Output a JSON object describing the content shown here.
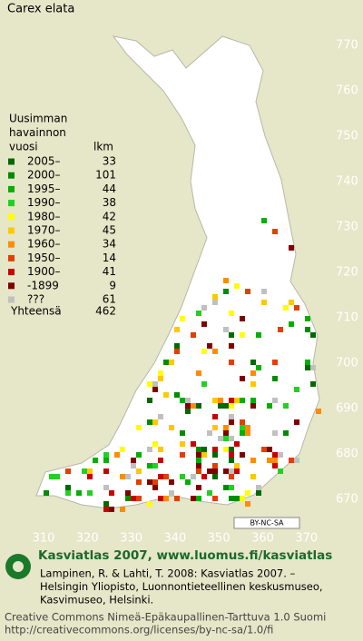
{
  "title": "Carex elata",
  "legend": {
    "heading": [
      "Uusimman",
      "havainnon",
      "vuosi"
    ],
    "count_heading": "lkm",
    "items": [
      {
        "label": "2005–",
        "count": 33,
        "color": "#006a00"
      },
      {
        "label": "2000–",
        "count": 101,
        "color": "#008c00"
      },
      {
        "label": "1995–",
        "count": 44,
        "color": "#00b000"
      },
      {
        "label": "1990–",
        "count": 38,
        "color": "#22d022"
      },
      {
        "label": "1980–",
        "count": 42,
        "color": "#ffff00"
      },
      {
        "label": "1970–",
        "count": 45,
        "color": "#ffc800"
      },
      {
        "label": "1960–",
        "count": 34,
        "color": "#ff8c00"
      },
      {
        "label": "1950–",
        "count": 14,
        "color": "#e04000"
      },
      {
        "label": "1900–",
        "count": 41,
        "color": "#c80000"
      },
      {
        "label": "-1899",
        "count": 9,
        "color": "#800000"
      },
      {
        "label": "???",
        "count": 61,
        "color": "#c0c0c0"
      }
    ],
    "total_label": "Yhteensä",
    "total": 462
  },
  "grid": {
    "y_labels": [
      "770",
      "760",
      "750",
      "740",
      "730",
      "720",
      "710",
      "700",
      "690",
      "680",
      "670"
    ],
    "x_labels": [
      "310",
      "320",
      "330",
      "340",
      "350",
      "360",
      "370"
    ]
  },
  "license_badge": "BY-NC-SA",
  "footer": {
    "site": "Kasviatlas 2007, www.luomus.fi/kasviatlas",
    "citation": [
      "Lampinen, R. & Lahti, T. 2008: Kasviatlas 2007. –",
      "Helsingin Yliopisto, Luonnontieteellinen keskusmuseo,",
      "Kasvimuseo, Helsinki."
    ],
    "license": [
      "Creative Commons Nimeä-Epäkaupallinen-Tarttuva 1.0 Suomi",
      "http://creativecommons.org/licenses/by-nc-sa/1.0/fi"
    ]
  }
}
